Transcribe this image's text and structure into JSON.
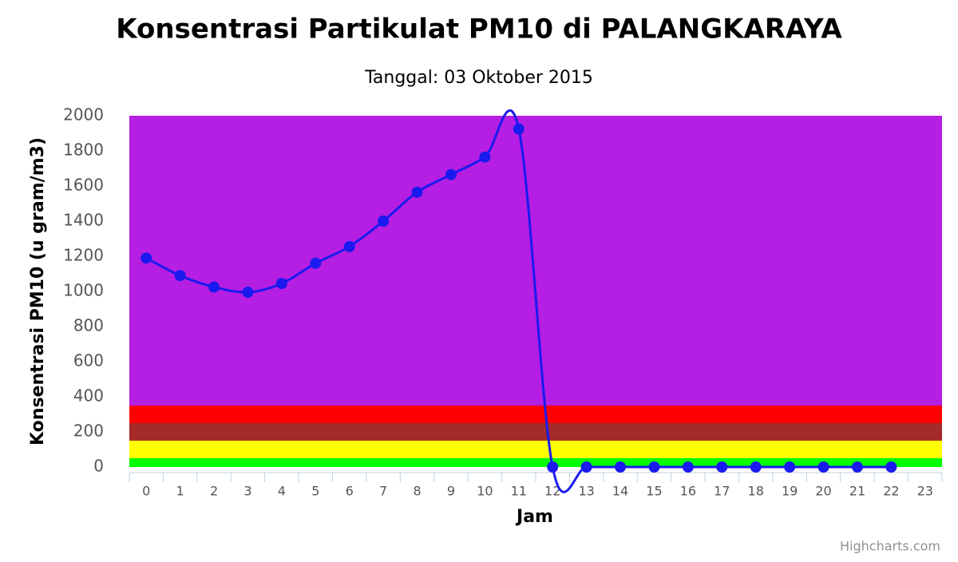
{
  "chart_data": {
    "type": "line",
    "title": "Konsentrasi Partikulat PM10 di PALANGKARAYA",
    "subtitle": "Tanggal: 03 Oktober 2015",
    "y_label": "Konsentrasi PM10 (u gram/m3)",
    "x_label": "Jam",
    "credits": "Highcharts.com",
    "categories": [
      "0",
      "1",
      "2",
      "3",
      "4",
      "5",
      "6",
      "7",
      "8",
      "9",
      "10",
      "11",
      "12",
      "13",
      "14",
      "15",
      "16",
      "17",
      "18",
      "19",
      "20",
      "21",
      "22",
      "23"
    ],
    "series": [
      {
        "name": "PM10",
        "color": "#1a1aee",
        "values": [
          1190,
          1090,
          1025,
          995,
          1045,
          1160,
          1255,
          1400,
          1565,
          1665,
          1765,
          1925,
          0,
          0,
          0,
          0,
          0,
          0,
          0,
          0,
          0,
          0,
          0,
          null
        ]
      }
    ],
    "bands": [
      {
        "from": 350,
        "to": 2000,
        "color": "#b41fe3"
      },
      {
        "from": 250,
        "to": 350,
        "color": "#ff0000"
      },
      {
        "from": 150,
        "to": 250,
        "color": "#a52a2a"
      },
      {
        "from": 50,
        "to": 150,
        "color": "#ffff00"
      },
      {
        "from": 0,
        "to": 50,
        "color": "#00ff00"
      }
    ],
    "ylim": [
      0,
      2000
    ],
    "yticks": [
      0,
      200,
      400,
      600,
      800,
      1000,
      1200,
      1400,
      1600,
      1800,
      2000
    ]
  }
}
